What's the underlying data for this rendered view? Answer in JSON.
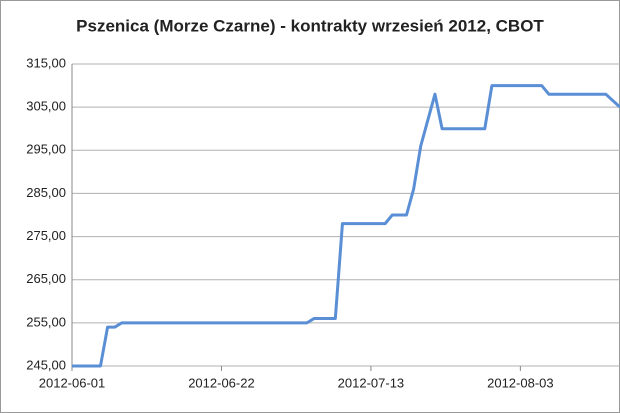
{
  "chart_data": {
    "type": "line",
    "title": "Pszenica (Morze Czarne) - kontrakty wrzesień 2012, CBOT",
    "x": [
      "2012-06-01",
      "2012-06-05",
      "2012-06-06",
      "2012-06-07",
      "2012-06-08",
      "2012-07-04",
      "2012-07-05",
      "2012-07-08",
      "2012-07-09",
      "2012-07-15",
      "2012-07-16",
      "2012-07-18",
      "2012-07-19",
      "2012-07-20",
      "2012-07-22",
      "2012-07-23",
      "2012-07-29",
      "2012-07-30",
      "2012-08-06",
      "2012-08-07",
      "2012-08-15",
      "2012-08-17"
    ],
    "series": [
      {
        "color": "#5a8fd6",
        "values": [
          245,
          245,
          254,
          254,
          255,
          255,
          256,
          256,
          278,
          278,
          280,
          280,
          286,
          296,
          308,
          300,
          300,
          310,
          310,
          308,
          308,
          305
        ]
      }
    ],
    "xlim": [
      "2012-06-01",
      "2012-08-17"
    ],
    "xticks": [
      "2012-06-01",
      "2012-06-22",
      "2012-07-13",
      "2012-08-03"
    ],
    "ylim": [
      245,
      315
    ],
    "yticks": [
      {
        "value": 245,
        "label": "245,00"
      },
      {
        "value": 255,
        "label": "255,00"
      },
      {
        "value": 265,
        "label": "265,00"
      },
      {
        "value": 275,
        "label": "275,00"
      },
      {
        "value": 285,
        "label": "285,00"
      },
      {
        "value": 295,
        "label": "295,00"
      },
      {
        "value": 305,
        "label": "305,00"
      },
      {
        "value": 315,
        "label": "315,00"
      }
    ],
    "grid": true
  }
}
